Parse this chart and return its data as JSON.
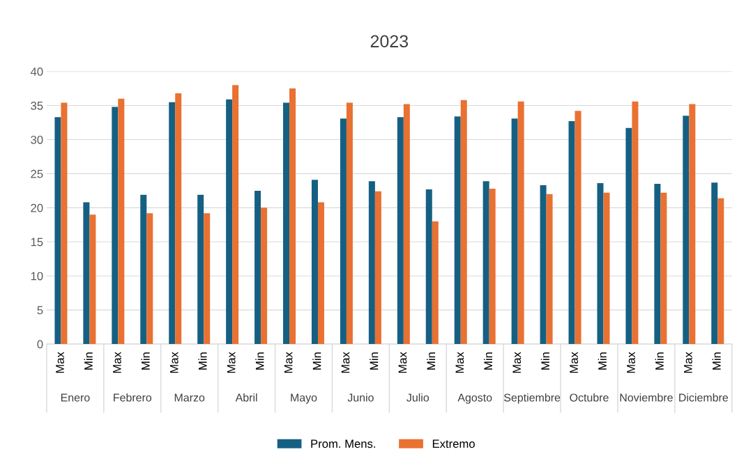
{
  "chart_data": {
    "type": "bar",
    "title": "2023",
    "categories": [
      "Max",
      "Min",
      "Max",
      "Min",
      "Max",
      "Min",
      "Max",
      "Min",
      "Max",
      "Min",
      "Max",
      "Min",
      "Max",
      "Min",
      "Max",
      "Min",
      "Max",
      "Min",
      "Max",
      "Min",
      "Max",
      "Min",
      "Max",
      "Min"
    ],
    "annotations": [
      "Enero",
      "Febrero",
      "Marzo",
      "Abril",
      "Mayo",
      "Junio",
      "Julio",
      "Agosto",
      "Septiembre",
      "Octubre",
      "Noviembre",
      "Diciembre"
    ],
    "series": [
      {
        "name": "Prom. Mens.",
        "color": "#156082",
        "values": [
          33.3,
          20.8,
          34.8,
          21.9,
          35.5,
          21.9,
          35.9,
          22.5,
          35.4,
          24.1,
          33.1,
          23.9,
          33.3,
          22.7,
          33.4,
          23.9,
          33.1,
          23.3,
          32.7,
          23.6,
          31.7,
          23.5,
          33.5,
          23.7
        ]
      },
      {
        "name": "Extremo",
        "color": "#e97132",
        "values": [
          35.4,
          19.0,
          36.0,
          19.2,
          36.8,
          19.2,
          38.0,
          20.0,
          37.5,
          20.8,
          35.4,
          22.4,
          35.2,
          18.0,
          35.8,
          22.8,
          35.6,
          22.0,
          34.2,
          22.2,
          35.6,
          22.2,
          35.2,
          21.4
        ]
      }
    ],
    "ylim": [
      0,
      40
    ],
    "yticks": [
      0,
      5,
      10,
      15,
      20,
      25,
      30,
      35,
      40
    ],
    "grid": "y",
    "legend": "bottom"
  }
}
